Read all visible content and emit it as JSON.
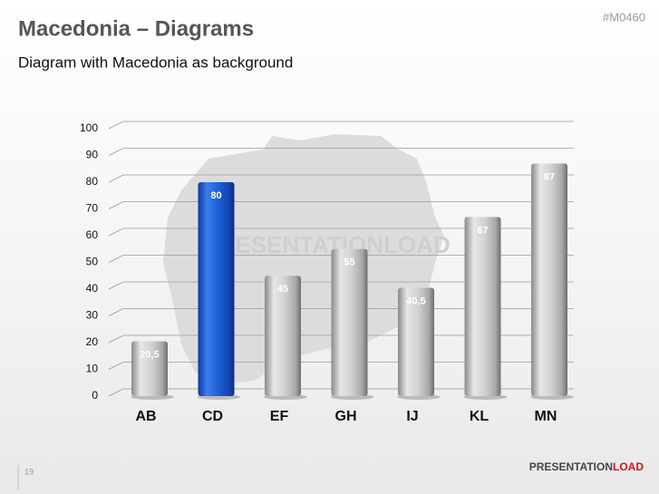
{
  "slide": {
    "title": "Macedonia – Diagrams",
    "subtitle": "Diagram with Macedonia as background",
    "code": "#M0460",
    "watermark": "PRESENTATIONLOAD",
    "page_number": "19",
    "logo_dark": "PRESENTATION",
    "logo_red": "LOAD"
  },
  "chart_data": {
    "type": "bar",
    "categories": [
      "AB",
      "CD",
      "EF",
      "GH",
      "IJ",
      "KL",
      "MN"
    ],
    "values": [
      20.5,
      80,
      45,
      55,
      40.5,
      67,
      87
    ],
    "value_labels": [
      "20,5",
      "80",
      "45",
      "55",
      "40,5",
      "67",
      "87"
    ],
    "colors": [
      "gray",
      "blue",
      "gray",
      "gray",
      "gray",
      "gray",
      "gray"
    ],
    "ylim": [
      0,
      100
    ],
    "yticks": [
      0,
      10,
      20,
      30,
      40,
      50,
      60,
      70,
      80,
      90,
      100
    ],
    "grid": true
  }
}
